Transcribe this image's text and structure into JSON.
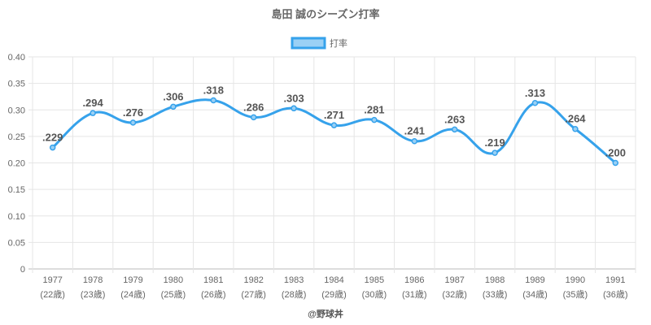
{
  "chart_data": {
    "type": "line",
    "title": "島田 誠のシーズン打率",
    "legend": {
      "label": "打率",
      "placement": "top-center"
    },
    "categories": [
      "1977",
      "1978",
      "1979",
      "1980",
      "1981",
      "1982",
      "1983",
      "1984",
      "1985",
      "1986",
      "1987",
      "1988",
      "1989",
      "1990",
      "1991"
    ],
    "ages": [
      "(22歳)",
      "(23歳)",
      "(24歳)",
      "(25歳)",
      "(26歳)",
      "(27歳)",
      "(28歳)",
      "(29歳)",
      "(30歳)",
      "(31歳)",
      "(32歳)",
      "(33歳)",
      "(34歳)",
      "(35歳)",
      "(36歳)"
    ],
    "series": [
      {
        "name": "打率",
        "values": [
          0.229,
          0.294,
          0.276,
          0.306,
          0.318,
          0.286,
          0.303,
          0.271,
          0.281,
          0.241,
          0.263,
          0.219,
          0.313,
          0.264,
          0.2
        ]
      }
    ],
    "data_labels": [
      ".229",
      ".294",
      ".276",
      ".306",
      ".318",
      ".286",
      ".303",
      ".271",
      ".281",
      ".241",
      ".263",
      ".219",
      ".313",
      ".264",
      ".200"
    ],
    "yticks": [
      "0",
      "0.05",
      "0.10",
      "0.15",
      "0.20",
      "0.25",
      "0.30",
      "0.35",
      "0.40"
    ],
    "ylim": [
      0,
      0.4
    ],
    "grid": true,
    "colors": {
      "line": "#36a2eb",
      "fill": "#9ad0f5"
    },
    "credit": "@野球丼"
  }
}
